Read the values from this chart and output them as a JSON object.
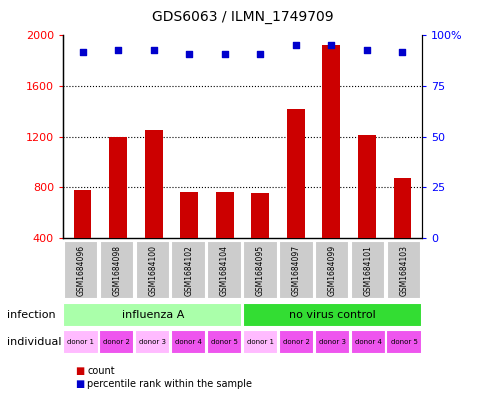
{
  "title": "GDS6063 / ILMN_1749709",
  "samples": [
    "GSM1684096",
    "GSM1684098",
    "GSM1684100",
    "GSM1684102",
    "GSM1684104",
    "GSM1684095",
    "GSM1684097",
    "GSM1684099",
    "GSM1684101",
    "GSM1684103"
  ],
  "counts": [
    780,
    1200,
    1250,
    760,
    760,
    750,
    1420,
    1920,
    1210,
    870
  ],
  "percentiles": [
    92,
    93,
    93,
    91,
    91,
    91,
    95,
    95,
    93,
    92
  ],
  "ylim_left": [
    400,
    2000
  ],
  "ylim_right": [
    0,
    100
  ],
  "yticks_left": [
    400,
    800,
    1200,
    1600,
    2000
  ],
  "yticks_right": [
    0,
    25,
    50,
    75,
    100
  ],
  "bar_color": "#cc0000",
  "dot_color": "#0000cc",
  "infection_groups": [
    {
      "label": "influenza A",
      "start": 0,
      "end": 5,
      "color": "#aaffaa"
    },
    {
      "label": "no virus control",
      "start": 5,
      "end": 10,
      "color": "#33dd33"
    }
  ],
  "donors": [
    "donor 1",
    "donor 2",
    "donor 3",
    "donor 4",
    "donor 5",
    "donor 1",
    "donor 2",
    "donor 3",
    "donor 4",
    "donor 5"
  ],
  "donor_colors": [
    "#ffbbff",
    "#ee55ee",
    "#ffbbff",
    "#ee55ee",
    "#ee55ee",
    "#ffbbff",
    "#ee55ee",
    "#ee55ee",
    "#ee55ee",
    "#ee55ee"
  ],
  "gsm_bg_color": "#cccccc",
  "infection_label": "infection",
  "individual_label": "individual",
  "legend_count_label": "count",
  "legend_pct_label": "percentile rank within the sample"
}
